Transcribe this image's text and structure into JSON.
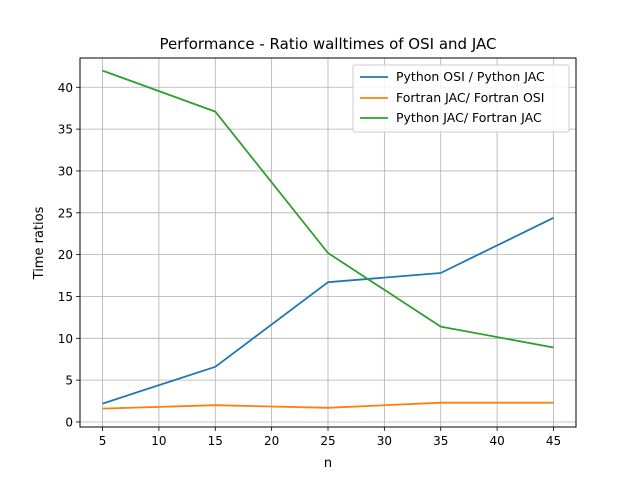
{
  "chart_data": {
    "type": "line",
    "title": "Performance - Ratio walltimes of OSI and JAC",
    "xlabel": "n",
    "ylabel": "Time ratios",
    "x": [
      5,
      15,
      25,
      35,
      45
    ],
    "xlim": [
      3,
      47
    ],
    "ylim": [
      -0.6,
      43.5
    ],
    "xticks": [
      5,
      10,
      15,
      20,
      25,
      30,
      35,
      40,
      45
    ],
    "yticks": [
      0,
      5,
      10,
      15,
      20,
      25,
      30,
      35,
      40
    ],
    "grid": true,
    "legend_position": "top-right",
    "series": [
      {
        "name": "Python OSI / Python JAC",
        "color": "#1f77b4",
        "values": [
          2.2,
          6.6,
          16.7,
          17.8,
          24.4
        ]
      },
      {
        "name": "Fortran JAC/ Fortran OSI",
        "color": "#ff7f0e",
        "values": [
          1.6,
          2.0,
          1.7,
          2.3,
          2.3
        ]
      },
      {
        "name": "Python JAC/ Fortran JAC",
        "color": "#2ca02c",
        "values": [
          42.0,
          37.1,
          20.2,
          11.4,
          8.9
        ]
      }
    ]
  }
}
